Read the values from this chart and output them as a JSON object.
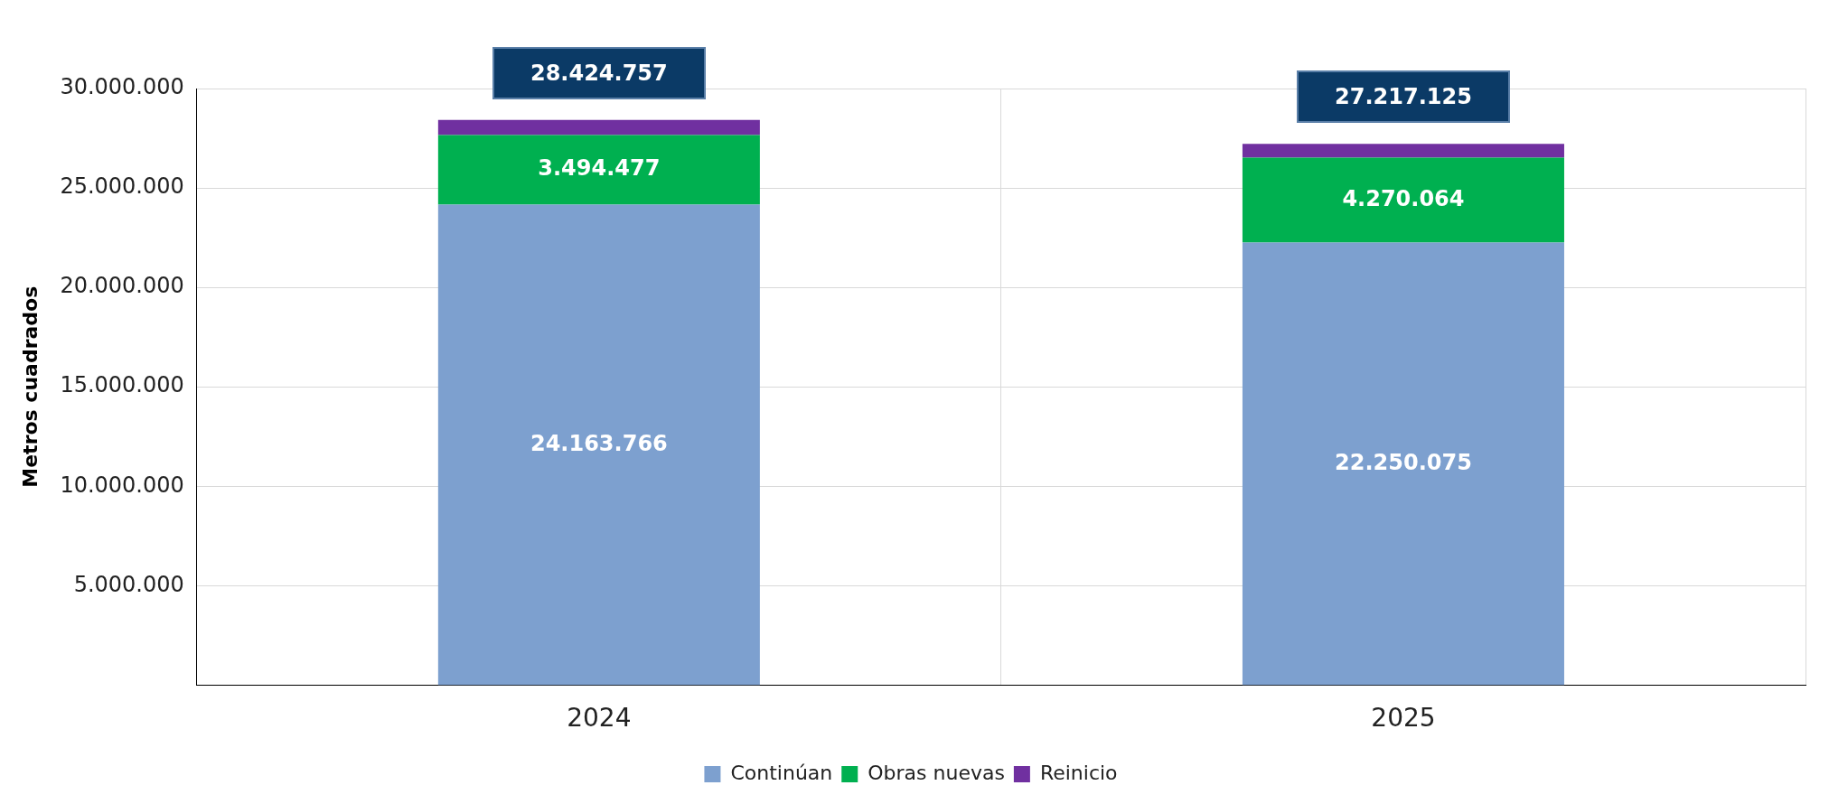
{
  "chart_data": {
    "type": "bar",
    "stacked": true,
    "ylabel": "Metros cuadrados",
    "categories": [
      "2024",
      "2025"
    ],
    "series": [
      {
        "name": "Continúan",
        "color": "#7da0cf",
        "values": [
          24163766,
          22250075
        ],
        "value_labels": [
          "24.163.766",
          "22.250.075"
        ]
      },
      {
        "name": "Obras nuevas",
        "color": "#00b050",
        "values": [
          3494477,
          4270064
        ],
        "value_labels": [
          "3.494.477",
          "4.270.064"
        ]
      },
      {
        "name": "Reinicio",
        "color": "#7030a0",
        "values": [
          766514,
          696986
        ]
      }
    ],
    "totals": [
      "28.424.757",
      "27.217.125"
    ],
    "ylim": [
      0,
      30000000
    ],
    "yticks": [
      {
        "value": 5000000,
        "label": "5.000.000"
      },
      {
        "value": 10000000,
        "label": "10.000.000"
      },
      {
        "value": 15000000,
        "label": "15.000.000"
      },
      {
        "value": 20000000,
        "label": "20.000.000"
      },
      {
        "value": 25000000,
        "label": "25.000.000"
      },
      {
        "value": 30000000,
        "label": "30.000.000"
      }
    ],
    "grid": true,
    "legend": "bottom"
  }
}
